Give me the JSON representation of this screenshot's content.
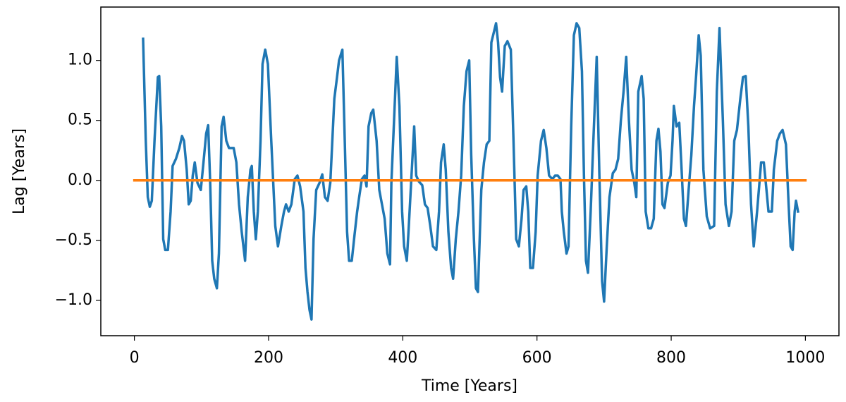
{
  "chart_data": {
    "type": "line",
    "xlabel": "Time [Years]",
    "ylabel": "Lag [Years]",
    "xlim": [
      -50,
      1050
    ],
    "ylim": [
      -1.295,
      1.445
    ],
    "xticks": [
      0,
      200,
      400,
      600,
      800,
      1000
    ],
    "yticks": [
      {
        "value": -1.0,
        "label": "−1.0"
      },
      {
        "value": -0.5,
        "label": "−0.5"
      },
      {
        "value": 0.0,
        "label": "0.0"
      },
      {
        "value": 0.5,
        "label": "0.5"
      },
      {
        "value": 1.0,
        "label": "1.0"
      }
    ],
    "grid": false,
    "series": [
      {
        "color": "#1f77b4",
        "x": [
          13,
          17,
          20,
          23,
          26,
          30,
          35,
          37,
          40,
          43,
          46,
          50,
          54,
          57,
          62,
          67,
          71,
          74,
          78,
          81,
          84,
          87,
          90,
          94,
          99,
          103,
          107,
          110,
          113,
          116,
          119,
          123,
          126,
          130,
          133,
          137,
          141,
          148,
          152,
          156,
          160,
          165,
          169,
          173,
          175,
          178,
          181,
          184,
          188,
          191,
          195,
          199,
          204,
          210,
          214,
          219,
          223,
          226,
          230,
          234,
          239,
          243,
          247,
          252,
          255,
          258,
          261,
          264,
          267,
          271,
          276,
          280,
          284,
          288,
          292,
          298,
          302,
          305,
          310,
          313,
          317,
          320,
          324,
          328,
          332,
          335,
          339,
          343,
          346,
          349,
          353,
          356,
          361,
          365,
          369,
          373,
          377,
          381,
          383,
          387,
          391,
          395,
          399,
          402,
          406,
          409,
          413,
          417,
          420,
          424,
          429,
          433,
          437,
          441,
          445,
          450,
          454,
          457,
          461,
          464,
          468,
          472,
          475,
          479,
          483,
          487,
          491,
          495,
          499,
          502,
          506,
          509,
          512,
          517,
          521,
          525,
          529,
          532,
          539,
          542,
          545,
          548,
          552,
          556,
          561,
          565,
          569,
          573,
          577,
          580,
          584,
          587,
          590,
          594,
          598,
          601,
          606,
          610,
          614,
          618,
          623,
          627,
          631,
          635,
          637,
          640,
          644,
          647,
          651,
          655,
          659,
          663,
          667,
          670,
          673,
          676,
          680,
          684,
          689,
          693,
          697,
          700,
          704,
          708,
          713,
          717,
          721,
          725,
          729,
          733,
          737,
          741,
          745,
          748,
          751,
          756,
          759,
          762,
          766,
          770,
          774,
          778,
          781,
          784,
          787,
          790,
          795,
          799,
          802,
          804,
          808,
          812,
          815,
          819,
          822,
          826,
          830,
          834,
          837,
          841,
          844,
          848,
          853,
          858,
          864,
          868,
          872,
          877,
          881,
          886,
          890,
          894,
          898,
          903,
          907,
          911,
          915,
          919,
          923,
          928,
          934,
          938,
          941,
          945,
          950,
          953,
          958,
          962,
          966,
          971,
          975,
          978,
          981,
          984,
          986,
          989
        ],
        "values": [
          1.18,
          0.33,
          -0.14,
          -0.22,
          -0.17,
          0.33,
          0.86,
          0.87,
          0.45,
          -0.49,
          -0.58,
          -0.58,
          -0.26,
          0.12,
          0.18,
          0.27,
          0.37,
          0.33,
          0.09,
          -0.2,
          -0.17,
          0.04,
          0.15,
          -0.02,
          -0.08,
          0.15,
          0.39,
          0.46,
          -0.02,
          -0.67,
          -0.82,
          -0.9,
          -0.61,
          0.45,
          0.53,
          0.33,
          0.27,
          0.27,
          0.15,
          -0.2,
          -0.43,
          -0.67,
          -0.14,
          0.09,
          0.12,
          -0.26,
          -0.49,
          -0.26,
          0.33,
          0.97,
          1.09,
          0.97,
          0.33,
          -0.38,
          -0.55,
          -0.38,
          -0.26,
          -0.2,
          -0.26,
          -0.2,
          0.01,
          0.04,
          -0.05,
          -0.26,
          -0.73,
          -0.93,
          -1.08,
          -1.16,
          -0.49,
          -0.08,
          -0.02,
          0.05,
          -0.14,
          -0.17,
          -0.02,
          0.68,
          0.86,
          1.0,
          1.09,
          0.45,
          -0.43,
          -0.67,
          -0.67,
          -0.46,
          -0.26,
          -0.14,
          0.01,
          0.04,
          -0.05,
          0.45,
          0.56,
          0.59,
          0.33,
          -0.08,
          -0.2,
          -0.32,
          -0.61,
          -0.7,
          -0.02,
          0.5,
          1.03,
          0.62,
          -0.26,
          -0.55,
          -0.67,
          -0.38,
          0.04,
          0.45,
          0.04,
          -0.01,
          -0.04,
          -0.2,
          -0.23,
          -0.38,
          -0.55,
          -0.58,
          -0.26,
          0.15,
          0.3,
          0.09,
          -0.43,
          -0.73,
          -0.82,
          -0.49,
          -0.26,
          0.04,
          0.62,
          0.91,
          1.0,
          0.21,
          -0.49,
          -0.9,
          -0.93,
          -0.08,
          0.15,
          0.3,
          0.33,
          1.15,
          1.31,
          1.15,
          0.86,
          0.74,
          1.12,
          1.16,
          1.09,
          0.33,
          -0.49,
          -0.55,
          -0.32,
          -0.08,
          -0.05,
          -0.26,
          -0.73,
          -0.73,
          -0.43,
          0.04,
          0.33,
          0.42,
          0.27,
          0.04,
          0.01,
          0.04,
          0.04,
          0.01,
          -0.26,
          -0.43,
          -0.61,
          -0.55,
          0.45,
          1.21,
          1.31,
          1.27,
          0.91,
          0.04,
          -0.67,
          -0.77,
          -0.26,
          0.33,
          1.03,
          0.04,
          -0.84,
          -1.01,
          -0.55,
          -0.14,
          0.06,
          0.09,
          0.18,
          0.5,
          0.74,
          1.03,
          0.5,
          0.09,
          -0.02,
          -0.14,
          0.74,
          0.87,
          0.68,
          -0.26,
          -0.4,
          -0.4,
          -0.32,
          0.33,
          0.43,
          0.24,
          -0.2,
          -0.23,
          -0.02,
          0.04,
          0.33,
          0.62,
          0.45,
          0.48,
          0.15,
          -0.32,
          -0.38,
          -0.08,
          0.21,
          0.62,
          0.86,
          1.21,
          1.04,
          0.09,
          -0.3,
          -0.4,
          -0.38,
          0.74,
          1.27,
          0.5,
          -0.2,
          -0.38,
          -0.26,
          0.33,
          0.42,
          0.68,
          0.86,
          0.87,
          0.45,
          -0.2,
          -0.55,
          -0.26,
          0.15,
          0.15,
          -0.02,
          -0.26,
          -0.26,
          0.09,
          0.33,
          0.39,
          0.42,
          0.3,
          -0.2,
          -0.55,
          -0.58,
          -0.26,
          -0.17,
          -0.26
        ]
      },
      {
        "color": "#ff7f0e",
        "x": [
          0,
          1000
        ],
        "values": [
          0,
          0
        ]
      }
    ]
  }
}
